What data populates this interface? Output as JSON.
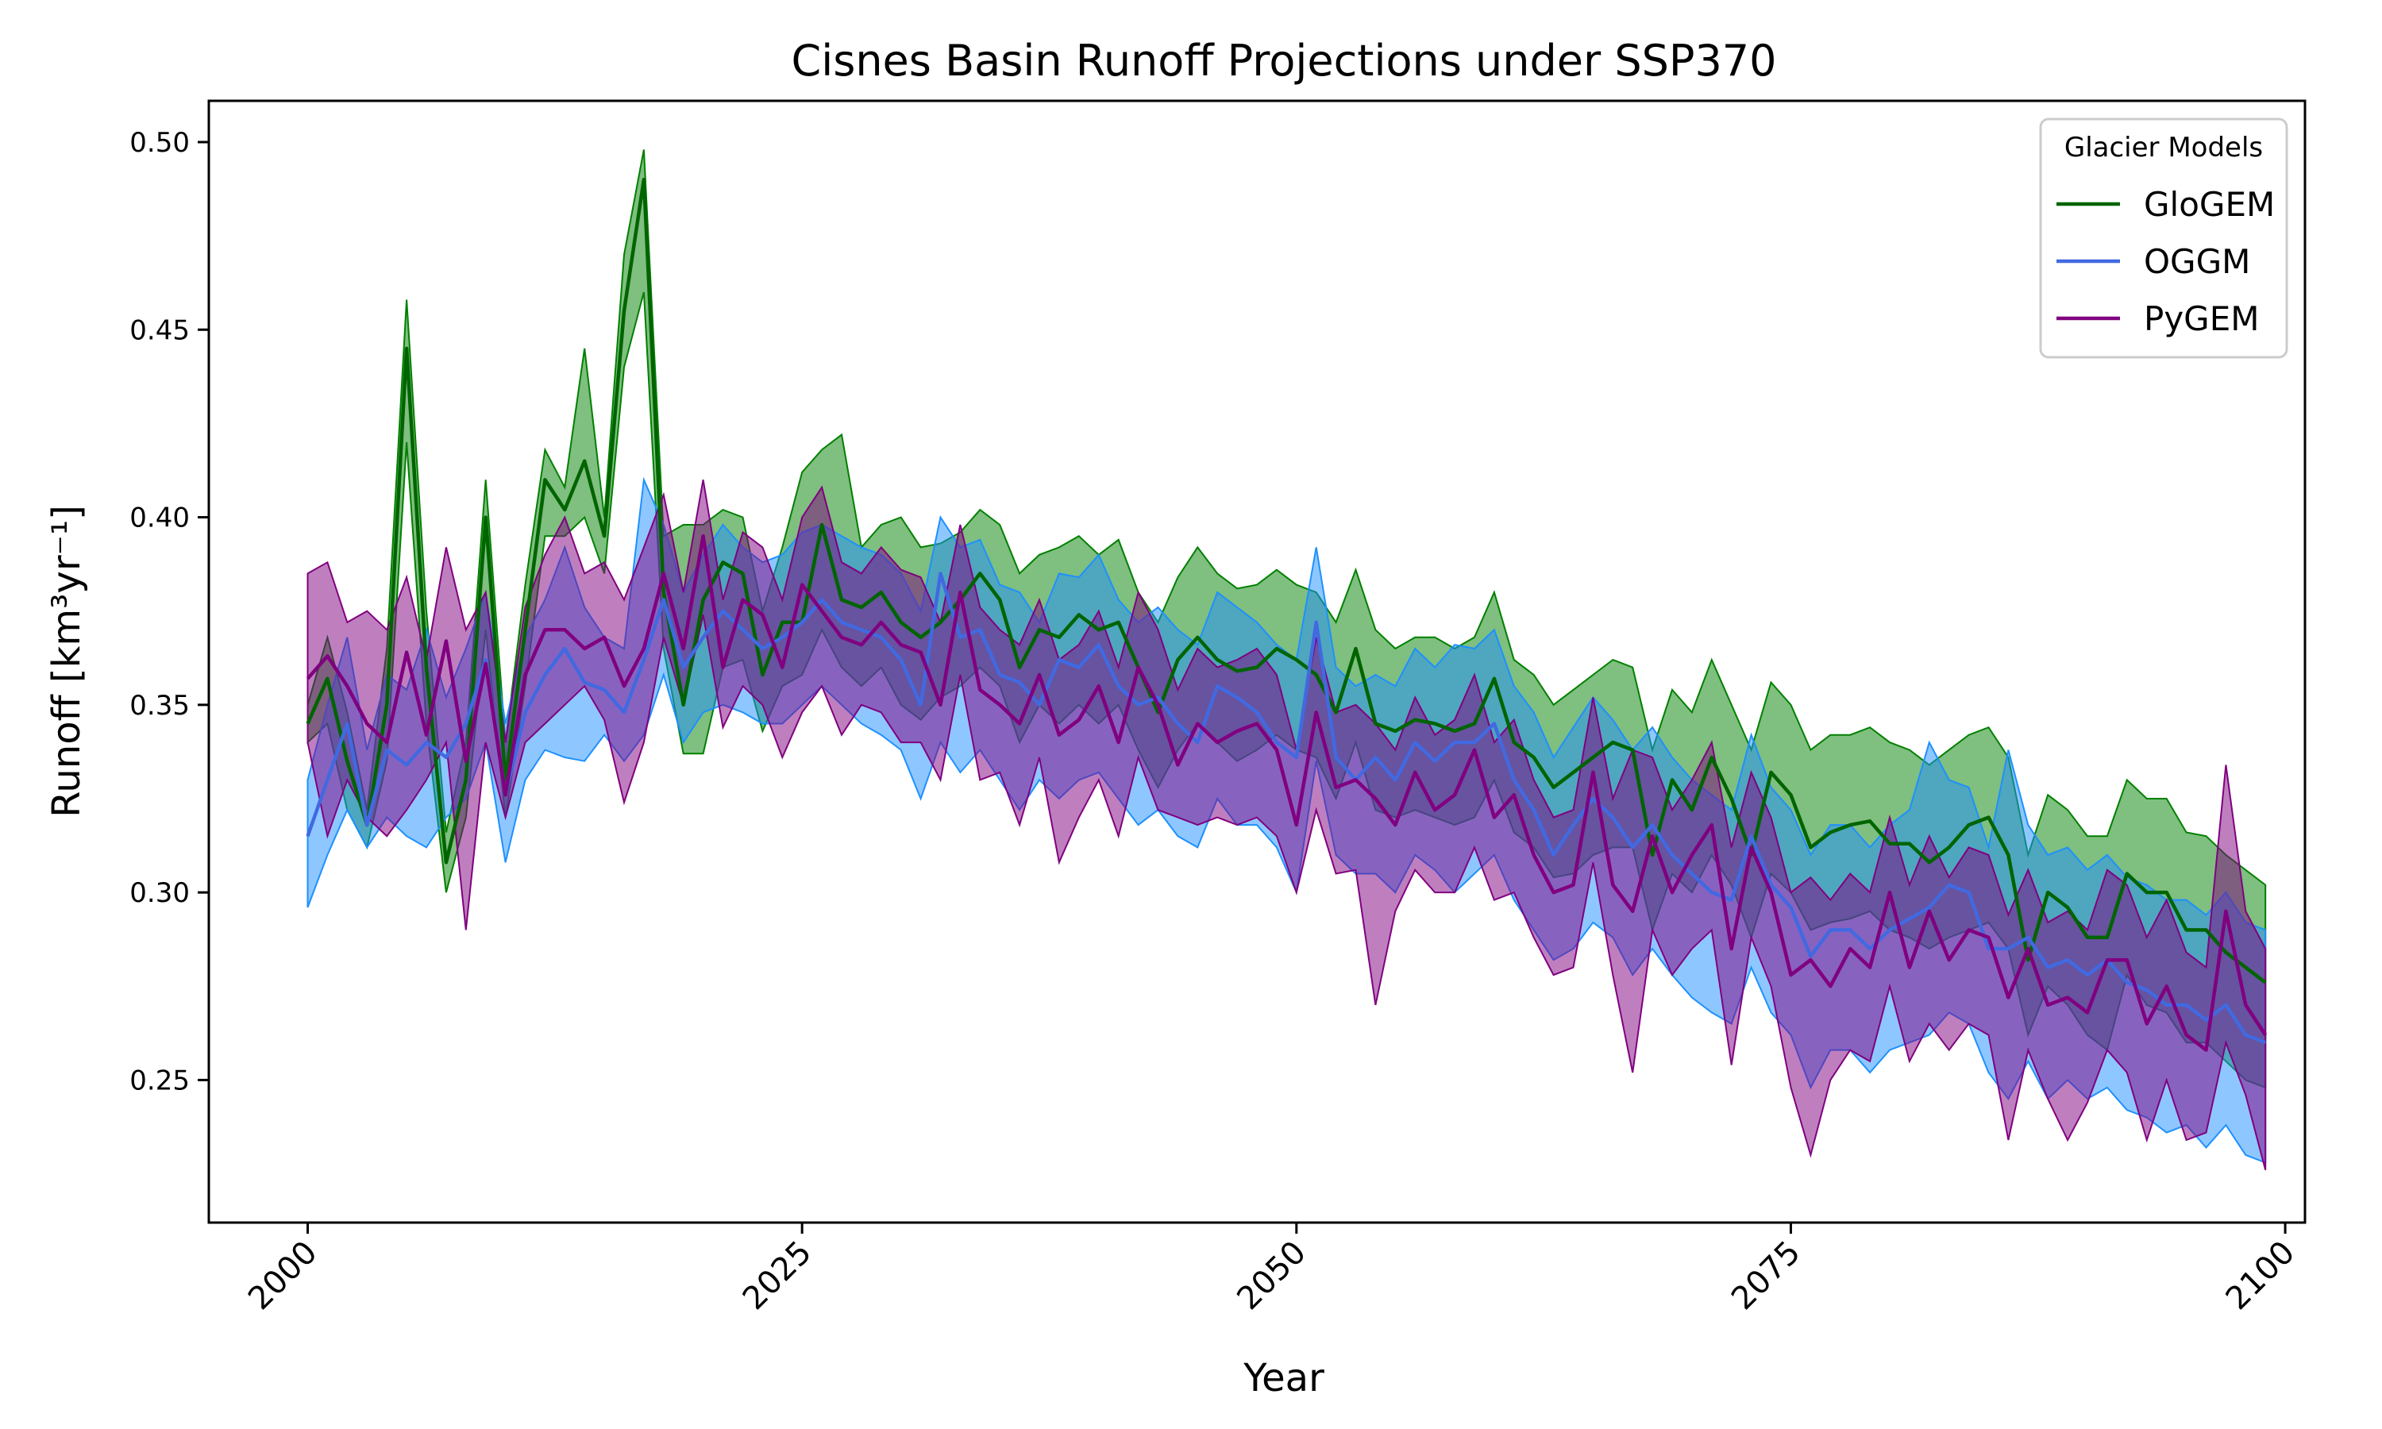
{
  "chart_data": {
    "type": "line",
    "title": "Cisnes Basin Runoff Projections under SSP370",
    "xlabel": "Year",
    "ylabel": "Runoff [km³yr⁻¹]",
    "xlim": [
      1995,
      2101
    ],
    "ylim": [
      0.212,
      0.511
    ],
    "x_ticks": [
      2000,
      2025,
      2050,
      2075,
      2100
    ],
    "y_ticks": [
      0.25,
      0.3,
      0.35,
      0.4,
      0.45,
      0.5
    ],
    "y_tick_labels": [
      "0.25",
      "0.30",
      "0.35",
      "0.40",
      "0.45",
      "0.50"
    ],
    "grid": false,
    "legend": {
      "title": "Glacier Models",
      "placement": "top-right"
    },
    "x": [
      2000,
      2001,
      2002,
      2003,
      2004,
      2005,
      2006,
      2007,
      2008,
      2009,
      2010,
      2011,
      2012,
      2013,
      2014,
      2015,
      2016,
      2017,
      2018,
      2019,
      2020,
      2021,
      2022,
      2023,
      2024,
      2025,
      2026,
      2027,
      2028,
      2029,
      2030,
      2031,
      2032,
      2033,
      2034,
      2035,
      2036,
      2037,
      2038,
      2039,
      2040,
      2041,
      2042,
      2043,
      2044,
      2045,
      2046,
      2047,
      2048,
      2049,
      2050,
      2051,
      2052,
      2053,
      2054,
      2055,
      2056,
      2057,
      2058,
      2059,
      2060,
      2061,
      2062,
      2063,
      2064,
      2065,
      2066,
      2067,
      2068,
      2069,
      2070,
      2071,
      2072,
      2073,
      2074,
      2075,
      2076,
      2077,
      2078,
      2079,
      2080,
      2081,
      2082,
      2083,
      2084,
      2085,
      2086,
      2087,
      2088,
      2089,
      2090,
      2091,
      2092,
      2093,
      2094,
      2095,
      2096,
      2097,
      2098,
      2099
    ],
    "series": [
      {
        "name": "GloGEM",
        "color": "#006400",
        "fill": "#008000",
        "mean": [
          0.345,
          0.357,
          0.335,
          0.318,
          0.35,
          0.445,
          0.36,
          0.308,
          0.33,
          0.4,
          0.33,
          0.37,
          0.41,
          0.402,
          0.415,
          0.395,
          0.455,
          0.49,
          0.38,
          0.35,
          0.378,
          0.388,
          0.385,
          0.358,
          0.372,
          0.372,
          0.398,
          0.378,
          0.376,
          0.38,
          0.372,
          0.368,
          0.372,
          0.378,
          0.385,
          0.378,
          0.36,
          0.37,
          0.368,
          0.374,
          0.37,
          0.372,
          0.36,
          0.348,
          0.362,
          0.368,
          0.362,
          0.359,
          0.36,
          0.365,
          0.362,
          0.358,
          0.348,
          0.365,
          0.345,
          0.343,
          0.346,
          0.345,
          0.343,
          0.345,
          0.357,
          0.34,
          0.336,
          0.328,
          0.332,
          0.336,
          0.34,
          0.338,
          0.31,
          0.33,
          0.322,
          0.336,
          0.325,
          0.31,
          0.332,
          0.326,
          0.312,
          0.316,
          0.318,
          0.319,
          0.313,
          0.313,
          0.308,
          0.312,
          0.318,
          0.32,
          0.31,
          0.282,
          0.3,
          0.296,
          0.288,
          0.288,
          0.305,
          0.3,
          0.3,
          0.29,
          0.29,
          0.284,
          0.28,
          0.276
        ],
        "lower": [
          0.34,
          0.345,
          0.322,
          0.312,
          0.335,
          0.42,
          0.345,
          0.3,
          0.32,
          0.37,
          0.32,
          0.355,
          0.395,
          0.395,
          0.4,
          0.385,
          0.44,
          0.46,
          0.365,
          0.337,
          0.337,
          0.36,
          0.362,
          0.343,
          0.355,
          0.358,
          0.37,
          0.36,
          0.355,
          0.36,
          0.35,
          0.346,
          0.352,
          0.355,
          0.36,
          0.355,
          0.34,
          0.35,
          0.345,
          0.35,
          0.345,
          0.35,
          0.338,
          0.328,
          0.338,
          0.345,
          0.34,
          0.335,
          0.338,
          0.342,
          0.338,
          0.336,
          0.325,
          0.34,
          0.322,
          0.32,
          0.322,
          0.32,
          0.318,
          0.32,
          0.33,
          0.316,
          0.312,
          0.304,
          0.305,
          0.31,
          0.312,
          0.312,
          0.29,
          0.305,
          0.3,
          0.31,
          0.302,
          0.288,
          0.305,
          0.3,
          0.29,
          0.292,
          0.293,
          0.295,
          0.29,
          0.288,
          0.285,
          0.288,
          0.29,
          0.292,
          0.285,
          0.262,
          0.275,
          0.27,
          0.262,
          0.258,
          0.278,
          0.27,
          0.268,
          0.26,
          0.26,
          0.255,
          0.25,
          0.248
        ],
        "upper": [
          0.35,
          0.368,
          0.348,
          0.322,
          0.365,
          0.458,
          0.375,
          0.316,
          0.34,
          0.41,
          0.34,
          0.382,
          0.418,
          0.408,
          0.445,
          0.4,
          0.47,
          0.498,
          0.395,
          0.398,
          0.398,
          0.402,
          0.4,
          0.375,
          0.392,
          0.412,
          0.418,
          0.422,
          0.392,
          0.398,
          0.4,
          0.392,
          0.393,
          0.396,
          0.402,
          0.398,
          0.385,
          0.39,
          0.392,
          0.395,
          0.39,
          0.394,
          0.38,
          0.372,
          0.384,
          0.392,
          0.385,
          0.381,
          0.382,
          0.386,
          0.382,
          0.38,
          0.372,
          0.386,
          0.37,
          0.365,
          0.368,
          0.368,
          0.365,
          0.368,
          0.38,
          0.362,
          0.358,
          0.35,
          0.354,
          0.358,
          0.362,
          0.36,
          0.338,
          0.354,
          0.348,
          0.362,
          0.35,
          0.338,
          0.356,
          0.35,
          0.338,
          0.342,
          0.342,
          0.344,
          0.34,
          0.338,
          0.334,
          0.338,
          0.342,
          0.344,
          0.336,
          0.31,
          0.326,
          0.322,
          0.315,
          0.315,
          0.33,
          0.325,
          0.325,
          0.316,
          0.315,
          0.31,
          0.306,
          0.302
        ]
      },
      {
        "name": "OGGM",
        "color": "#4169E1",
        "fill": "#1E90FF",
        "mean": [
          0.315,
          0.33,
          0.345,
          0.318,
          0.338,
          0.334,
          0.34,
          0.336,
          0.345,
          0.362,
          0.326,
          0.348,
          0.358,
          0.365,
          0.356,
          0.354,
          0.348,
          0.362,
          0.378,
          0.36,
          0.368,
          0.375,
          0.37,
          0.365,
          0.368,
          0.372,
          0.378,
          0.372,
          0.37,
          0.368,
          0.362,
          0.35,
          0.385,
          0.368,
          0.37,
          0.358,
          0.356,
          0.35,
          0.362,
          0.36,
          0.366,
          0.355,
          0.35,
          0.352,
          0.345,
          0.34,
          0.355,
          0.352,
          0.348,
          0.34,
          0.336,
          0.372,
          0.336,
          0.33,
          0.336,
          0.33,
          0.34,
          0.335,
          0.34,
          0.34,
          0.345,
          0.33,
          0.322,
          0.31,
          0.318,
          0.325,
          0.32,
          0.312,
          0.318,
          0.31,
          0.305,
          0.3,
          0.298,
          0.315,
          0.302,
          0.296,
          0.283,
          0.29,
          0.29,
          0.285,
          0.29,
          0.293,
          0.296,
          0.302,
          0.3,
          0.285,
          0.285,
          0.288,
          0.28,
          0.282,
          0.278,
          0.282,
          0.276,
          0.274,
          0.27,
          0.27,
          0.266,
          0.27,
          0.262,
          0.26
        ],
        "lower": [
          0.296,
          0.31,
          0.322,
          0.312,
          0.32,
          0.315,
          0.312,
          0.32,
          0.325,
          0.34,
          0.308,
          0.33,
          0.338,
          0.336,
          0.335,
          0.342,
          0.335,
          0.342,
          0.358,
          0.34,
          0.348,
          0.35,
          0.348,
          0.345,
          0.345,
          0.35,
          0.355,
          0.35,
          0.345,
          0.342,
          0.338,
          0.325,
          0.34,
          0.332,
          0.338,
          0.33,
          0.322,
          0.33,
          0.325,
          0.33,
          0.332,
          0.325,
          0.318,
          0.322,
          0.315,
          0.312,
          0.325,
          0.318,
          0.318,
          0.312,
          0.3,
          0.335,
          0.31,
          0.305,
          0.305,
          0.3,
          0.31,
          0.306,
          0.3,
          0.305,
          0.31,
          0.298,
          0.29,
          0.282,
          0.285,
          0.292,
          0.288,
          0.278,
          0.285,
          0.278,
          0.272,
          0.268,
          0.265,
          0.28,
          0.268,
          0.262,
          0.248,
          0.258,
          0.258,
          0.252,
          0.258,
          0.26,
          0.262,
          0.268,
          0.265,
          0.252,
          0.245,
          0.255,
          0.245,
          0.25,
          0.245,
          0.248,
          0.242,
          0.24,
          0.236,
          0.238,
          0.232,
          0.238,
          0.23,
          0.228
        ],
        "upper": [
          0.33,
          0.35,
          0.368,
          0.338,
          0.358,
          0.354,
          0.37,
          0.352,
          0.365,
          0.38,
          0.345,
          0.368,
          0.378,
          0.392,
          0.376,
          0.368,
          0.365,
          0.41,
          0.398,
          0.38,
          0.39,
          0.398,
          0.392,
          0.388,
          0.39,
          0.396,
          0.398,
          0.395,
          0.392,
          0.39,
          0.385,
          0.375,
          0.4,
          0.392,
          0.394,
          0.382,
          0.38,
          0.372,
          0.385,
          0.384,
          0.39,
          0.378,
          0.372,
          0.376,
          0.37,
          0.366,
          0.38,
          0.376,
          0.372,
          0.366,
          0.362,
          0.392,
          0.36,
          0.355,
          0.358,
          0.355,
          0.365,
          0.36,
          0.366,
          0.365,
          0.37,
          0.355,
          0.348,
          0.336,
          0.344,
          0.352,
          0.346,
          0.338,
          0.344,
          0.336,
          0.33,
          0.326,
          0.322,
          0.342,
          0.328,
          0.322,
          0.31,
          0.318,
          0.318,
          0.312,
          0.318,
          0.322,
          0.34,
          0.33,
          0.328,
          0.312,
          0.338,
          0.318,
          0.31,
          0.312,
          0.306,
          0.31,
          0.304,
          0.302,
          0.298,
          0.298,
          0.294,
          0.3,
          0.292,
          0.29
        ]
      },
      {
        "name": "PyGEM",
        "color": "#800080",
        "fill": "#800080",
        "mean": [
          0.357,
          0.363,
          0.355,
          0.345,
          0.34,
          0.364,
          0.342,
          0.367,
          0.335,
          0.361,
          0.326,
          0.358,
          0.37,
          0.37,
          0.365,
          0.368,
          0.355,
          0.365,
          0.385,
          0.365,
          0.395,
          0.36,
          0.378,
          0.374,
          0.36,
          0.382,
          0.375,
          0.368,
          0.366,
          0.372,
          0.366,
          0.364,
          0.35,
          0.38,
          0.354,
          0.35,
          0.345,
          0.358,
          0.342,
          0.346,
          0.355,
          0.34,
          0.36,
          0.35,
          0.334,
          0.345,
          0.34,
          0.343,
          0.345,
          0.338,
          0.318,
          0.348,
          0.328,
          0.33,
          0.325,
          0.318,
          0.332,
          0.322,
          0.326,
          0.338,
          0.32,
          0.326,
          0.31,
          0.3,
          0.302,
          0.332,
          0.302,
          0.295,
          0.315,
          0.3,
          0.31,
          0.318,
          0.285,
          0.312,
          0.3,
          0.278,
          0.282,
          0.275,
          0.285,
          0.28,
          0.3,
          0.28,
          0.295,
          0.282,
          0.29,
          0.288,
          0.272,
          0.285,
          0.27,
          0.272,
          0.268,
          0.282,
          0.282,
          0.265,
          0.275,
          0.262,
          0.258,
          0.295,
          0.27,
          0.262
        ],
        "lower": [
          0.34,
          0.315,
          0.33,
          0.32,
          0.315,
          0.322,
          0.33,
          0.34,
          0.29,
          0.34,
          0.32,
          0.34,
          0.345,
          0.35,
          0.355,
          0.346,
          0.324,
          0.34,
          0.368,
          0.35,
          0.374,
          0.344,
          0.355,
          0.35,
          0.336,
          0.348,
          0.355,
          0.342,
          0.35,
          0.348,
          0.34,
          0.34,
          0.33,
          0.358,
          0.33,
          0.332,
          0.318,
          0.336,
          0.308,
          0.32,
          0.33,
          0.315,
          0.336,
          0.322,
          0.32,
          0.318,
          0.32,
          0.318,
          0.32,
          0.315,
          0.3,
          0.322,
          0.305,
          0.306,
          0.27,
          0.295,
          0.306,
          0.3,
          0.3,
          0.312,
          0.298,
          0.3,
          0.288,
          0.278,
          0.28,
          0.308,
          0.278,
          0.252,
          0.29,
          0.278,
          0.285,
          0.29,
          0.254,
          0.288,
          0.275,
          0.248,
          0.23,
          0.25,
          0.258,
          0.255,
          0.275,
          0.255,
          0.265,
          0.258,
          0.265,
          0.262,
          0.234,
          0.258,
          0.245,
          0.234,
          0.244,
          0.258,
          0.252,
          0.234,
          0.25,
          0.234,
          0.236,
          0.26,
          0.246,
          0.226
        ],
        "upper": [
          0.385,
          0.388,
          0.372,
          0.375,
          0.37,
          0.384,
          0.362,
          0.392,
          0.37,
          0.38,
          0.34,
          0.376,
          0.39,
          0.4,
          0.385,
          0.388,
          0.378,
          0.392,
          0.406,
          0.38,
          0.41,
          0.378,
          0.396,
          0.392,
          0.378,
          0.4,
          0.408,
          0.388,
          0.385,
          0.392,
          0.386,
          0.384,
          0.372,
          0.398,
          0.376,
          0.37,
          0.366,
          0.378,
          0.362,
          0.366,
          0.375,
          0.36,
          0.38,
          0.37,
          0.354,
          0.365,
          0.36,
          0.362,
          0.365,
          0.358,
          0.338,
          0.368,
          0.348,
          0.35,
          0.345,
          0.338,
          0.352,
          0.342,
          0.346,
          0.358,
          0.34,
          0.346,
          0.33,
          0.32,
          0.322,
          0.352,
          0.325,
          0.338,
          0.336,
          0.322,
          0.33,
          0.34,
          0.312,
          0.332,
          0.32,
          0.3,
          0.304,
          0.298,
          0.305,
          0.3,
          0.32,
          0.302,
          0.315,
          0.304,
          0.312,
          0.31,
          0.294,
          0.306,
          0.292,
          0.295,
          0.29,
          0.306,
          0.302,
          0.288,
          0.298,
          0.284,
          0.28,
          0.334,
          0.295,
          0.285
        ]
      }
    ]
  }
}
